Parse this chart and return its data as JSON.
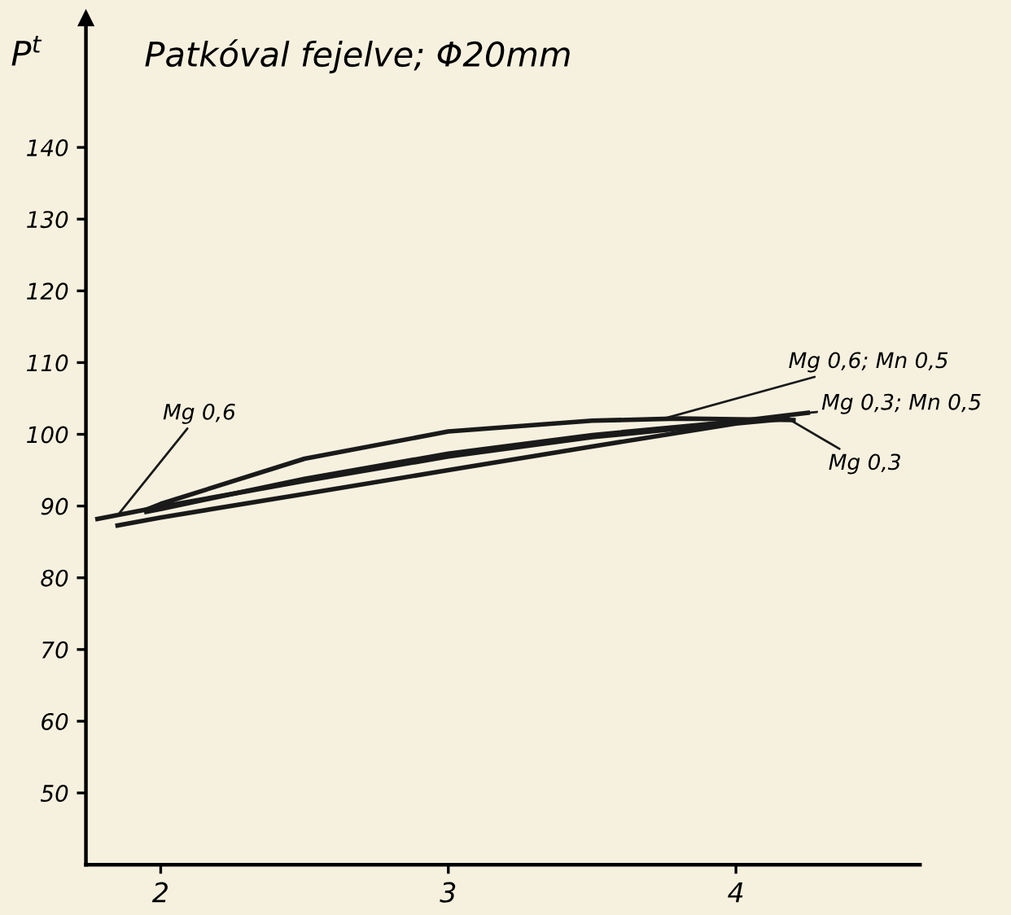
{
  "chart_data": {
    "type": "line",
    "title": "Patkóval fejelve; Φ20mm",
    "ylabel": "P$^{t}$",
    "xlim": [
      1.74,
      4.64
    ],
    "ylim": [
      40,
      158
    ],
    "xticks": [
      2,
      3,
      4
    ],
    "yticks": [
      50,
      60,
      70,
      80,
      90,
      100,
      110,
      120,
      130,
      140
    ],
    "grid": false,
    "marker": "none",
    "line_style": "solid",
    "series": [
      {
        "color": "#1a1a1a",
        "x": [
          1.78,
          2,
          2.5,
          3,
          3.5,
          4
        ],
        "values": [
          88.2,
          89.9,
          93.5,
          96.9,
          99.6,
          101.6
        ]
      },
      {
        "color": "#1a1a1a",
        "x": [
          1.85,
          2,
          2.5,
          3,
          3.5,
          4,
          4.18
        ],
        "values": [
          87.3,
          88.4,
          91.7,
          95,
          98.3,
          101.5,
          102.2
        ]
      },
      {
        "color": "#1a1a1a",
        "x": [
          1.95,
          2,
          2.5,
          3,
          3.5,
          4,
          4.25
        ],
        "values": [
          89.2,
          89.6,
          93.8,
          97.3,
          99.9,
          101.8,
          103
        ]
      },
      {
        "color": "#1a1a1a",
        "x": [
          1.95,
          2,
          2.5,
          3,
          3.5,
          3.8,
          4,
          4.2
        ],
        "values": [
          89.5,
          90.3,
          96.6,
          100.4,
          101.9,
          102.2,
          102.1,
          102
        ]
      }
    ],
    "annotations": [
      {
        "text": "Mg 0,6",
        "x": 1.85,
        "y": 88.7
      },
      {
        "text": "Mg 0,6; Mn 0,5",
        "x": 3.75,
        "y": 102.2
      },
      {
        "text": "Mg 0,3; Mn 0,5",
        "x": 4.25,
        "y": 103
      },
      {
        "text": "Mg 0,3",
        "x": 4.18,
        "y": 102.2
      }
    ]
  }
}
